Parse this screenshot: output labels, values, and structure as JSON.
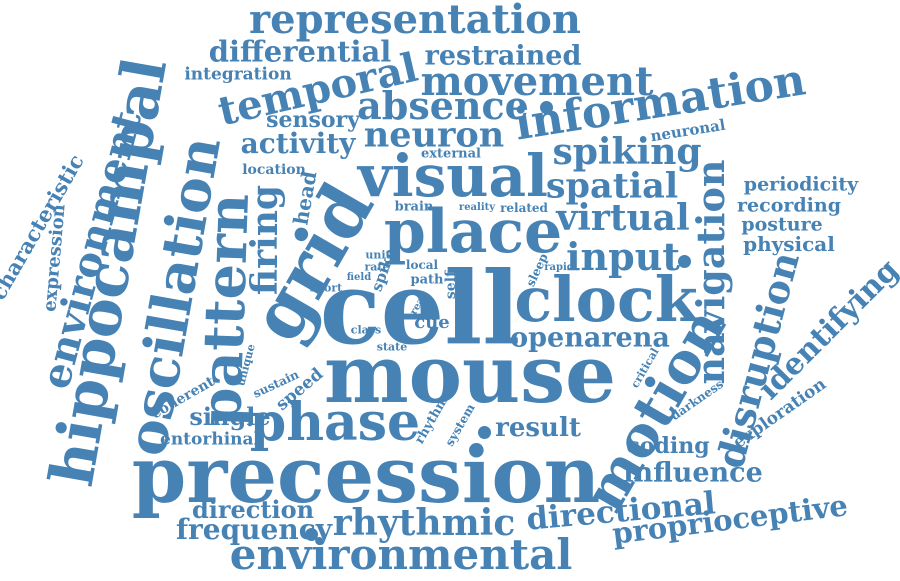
{
  "colors": {
    "word": "#4682b4",
    "background": "#ffffff"
  },
  "words": {
    "representation": "representation",
    "differential": "differential",
    "restrained": "restrained",
    "integration": "integration",
    "temporal": "temporal",
    "movement": "movement",
    "information": "information",
    "absence": "absence",
    "sensory": "sensory",
    "neuron": "neuron",
    "neuronal": "neuronal",
    "activity": "activity",
    "spiking": "spiking",
    "visual": "visual",
    "external": "external",
    "location": "location",
    "spatial": "spatial",
    "periodicity": "periodicity",
    "recording": "recording",
    "posture": "posture",
    "physical": "physical",
    "head": "head",
    "brain": "brain",
    "reality": "reality",
    "related": "related",
    "virtual": "virtual",
    "place": "place",
    "grid": "grid",
    "input": "input",
    "navigation": "navigation",
    "characteristic": "characteristic",
    "expression": "expression",
    "environment": "environment",
    "hippocampal": "hippocampal",
    "oscillation": "oscillation",
    "pattern": "pattern",
    "firing": "firing",
    "unit": "unit",
    "local": "local",
    "rate": "rate",
    "path": "path",
    "field": "field",
    "spike": "spike",
    "short": "short",
    "self": "self",
    "sleep": "sleep",
    "rapid": "rapid",
    "cell": "cell",
    "clock": "clock",
    "real": "real",
    "class": "class",
    "cue": "cue",
    "openarena": "openarena",
    "identifying": "identifying",
    "disruption": "disruption",
    "unique": "unique",
    "state": "state",
    "mouse": "mouse",
    "critical": "critical",
    "motion": "motion",
    "sustain": "sustain",
    "speed": "speed",
    "coherent": "coherent",
    "single": "single",
    "phase": "phase",
    "rhythm": "rhythm",
    "system": "system",
    "darkness": "darkness",
    "exploration": "exploration",
    "result": "result",
    "entorhinal": "entorhinal",
    "coding": "coding",
    "influence": "influence",
    "precession": "precession",
    "direction": "direction",
    "directional": "directional",
    "frequency": "frequency",
    "rhythmic": "rhythmic",
    "proprioceptive": "proprioceptive",
    "environmental": "environmental"
  }
}
